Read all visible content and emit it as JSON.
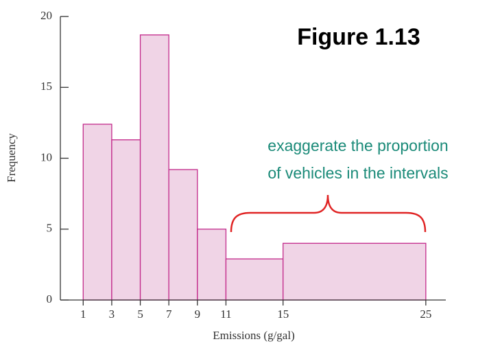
{
  "chart_data": {
    "type": "histogram",
    "xlabel": "Emissions (g/gal)",
    "ylabel": "Frequency",
    "bins": [
      1,
      3,
      5,
      7,
      9,
      11,
      15,
      25
    ],
    "values": [
      12.4,
      11.3,
      18.7,
      9.2,
      5,
      2.9,
      4
    ],
    "color": "#f0d4e6",
    "edge_color": "#c2288a",
    "xlim": [
      -0.6,
      26.4
    ],
    "xticks": [
      1,
      3,
      5,
      7,
      9,
      11,
      15,
      25
    ],
    "ylim": [
      0,
      20
    ],
    "yticks": [
      0,
      5,
      10,
      15,
      20
    ],
    "annotations": [
      "Figure 1.13",
      "exaggerate the proportion",
      "of vehicles in the intervals"
    ],
    "annotation_color": "#1a8a78",
    "brace_color": "#e02424"
  }
}
